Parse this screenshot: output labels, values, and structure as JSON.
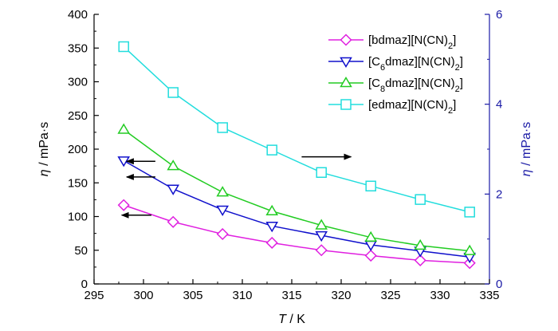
{
  "chart_data": {
    "type": "line",
    "x_title_var": "T",
    "x_title_unit": " / K",
    "y_title_var": "η",
    "y_title_unit": " / mPa·s",
    "y2_title_var": "η",
    "y2_title_unit": " / mPa·s",
    "xlim": [
      295,
      335
    ],
    "ylim": [
      0,
      400
    ],
    "y2lim": [
      0,
      6
    ],
    "xticks": [
      295,
      300,
      305,
      310,
      315,
      320,
      325,
      330,
      335
    ],
    "yticks": [
      0,
      50,
      100,
      150,
      200,
      250,
      300,
      350,
      400
    ],
    "y2ticks": [
      0,
      2,
      4,
      6
    ],
    "left_axis_color": "#000000",
    "right_axis_color": "#1a1aa6",
    "grid": false,
    "legend_position": "top-right",
    "x": [
      298,
      303,
      308,
      313,
      318,
      323,
      328,
      333
    ],
    "series": [
      {
        "name_parts": [
          [
            "[bdmaz][N(CN)",
            "n"
          ],
          [
            "2",
            "sub"
          ],
          [
            "]",
            "n"
          ]
        ],
        "color": "#e020e0",
        "marker": "diamond",
        "axis": "left",
        "values": [
          117,
          92,
          74,
          61,
          50,
          42,
          35,
          31
        ]
      },
      {
        "name_parts": [
          [
            "[C",
            "n"
          ],
          [
            "6",
            "sub"
          ],
          [
            "dmaz][N(CN)",
            "n"
          ],
          [
            "2",
            "sub"
          ],
          [
            "]",
            "n"
          ]
        ],
        "color": "#1010cc",
        "marker": "triangle-down",
        "axis": "left",
        "values": [
          183,
          141,
          110,
          86,
          72,
          58,
          49,
          40
        ]
      },
      {
        "name_parts": [
          [
            "[C",
            "n"
          ],
          [
            "8",
            "sub"
          ],
          [
            "dmaz][N(CN)",
            "n"
          ],
          [
            "2",
            "sub"
          ],
          [
            "]",
            "n"
          ]
        ],
        "color": "#22cc22",
        "marker": "triangle-up",
        "axis": "left",
        "values": [
          229,
          175,
          136,
          108,
          87,
          69,
          57,
          49
        ]
      },
      {
        "name_parts": [
          [
            "[edmaz][N(CN)",
            "n"
          ],
          [
            "2",
            "sub"
          ],
          [
            "]",
            "n"
          ]
        ],
        "color": "#22dddd",
        "marker": "square",
        "axis": "right",
        "values": [
          5.28,
          4.26,
          3.48,
          2.98,
          2.48,
          2.18,
          1.88,
          1.6
        ]
      }
    ],
    "annotations": [
      {
        "type": "arrow",
        "direction": "left",
        "from": [
          301.2,
          2.73
        ],
        "to": [
          298.3,
          2.73
        ],
        "axis": "right"
      },
      {
        "type": "arrow",
        "direction": "left",
        "from": [
          301.2,
          2.38
        ],
        "to": [
          298.3,
          2.38
        ],
        "axis": "right"
      },
      {
        "type": "arrow",
        "direction": "left",
        "from": [
          300.8,
          1.53
        ],
        "to": [
          297.8,
          1.53
        ],
        "axis": "right"
      },
      {
        "type": "arrow",
        "direction": "right",
        "from": [
          316.0,
          2.83
        ],
        "to": [
          321.0,
          2.83
        ],
        "axis": "right"
      }
    ]
  }
}
